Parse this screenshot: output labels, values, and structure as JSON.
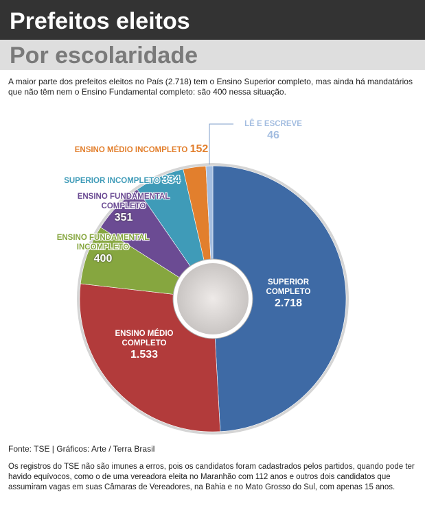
{
  "header": {
    "title": "Prefeitos eleitos",
    "subtitle": "Por escolaridade"
  },
  "intro": "A maior parte dos prefeitos eleitos no País (2.718) tem o Ensino Superior completo, mas ainda há mandatários que não têm nem o Ensino Fundamental completo: são 400 nessa situação.",
  "chart_data": {
    "type": "pie",
    "categories": [
      "SUPERIOR COMPLETO",
      "ENSINO MÉDIO COMPLETO",
      "ENSINO FUNDAMENTAL INCOMPLETO",
      "ENSINO FUNDAMENTAL COMPLETO",
      "SUPERIOR INCOMPLETO",
      "ENSINO MÉDIO INCOMPLETO",
      "LÊ E ESCREVE"
    ],
    "values": [
      2718,
      1533,
      400,
      351,
      334,
      152,
      46
    ],
    "value_labels": [
      "2.718",
      "1.533",
      "400",
      "351",
      "334",
      "152",
      "46"
    ],
    "colors": [
      "#3e6aa5",
      "#b23b3b",
      "#86a63f",
      "#6b4b93",
      "#3f9bb8",
      "#e27f2d",
      "#a3bde0"
    ]
  },
  "source": "Fonte: TSE  | Gráficos: Arte / Terra Brasil",
  "footnote": "Os registros do TSE não são imunes a erros, pois os candidatos foram cadastrados pelos partidos, quando pode ter havido equívocos, como o de uma vereadora eleita no Maranhão com 112 anos e outros dois candidatos que assumiram vagas em suas Câmaras de Vereadores, na Bahia e no Mato Grosso do Sul, com apenas 15 anos."
}
